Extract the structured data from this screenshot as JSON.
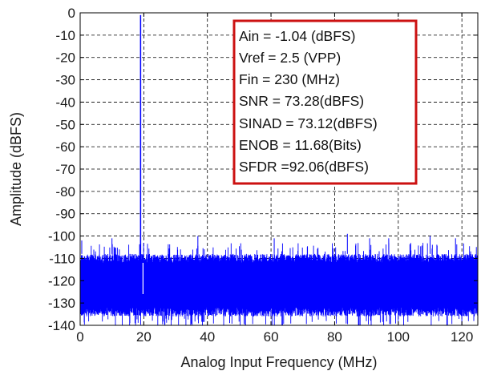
{
  "chart_data": {
    "type": "line",
    "xlabel": "Analog Input Frequency (MHz)",
    "ylabel": "Amplitude (dBFS)",
    "xlim": [
      0,
      125
    ],
    "ylim": [
      -140,
      0
    ],
    "x_ticks": [
      0,
      20,
      40,
      60,
      80,
      100,
      120
    ],
    "x_tick_labels": [
      "0",
      "20",
      "40",
      "60",
      "80",
      "100",
      "120"
    ],
    "y_ticks": [
      0,
      -10,
      -20,
      -30,
      -40,
      -50,
      -60,
      -70,
      -80,
      -90,
      -100,
      -110,
      -120,
      -130,
      -140
    ],
    "y_tick_labels": [
      "0",
      "-10",
      "-20",
      "-30",
      "-40",
      "-50",
      "-60",
      "-70",
      "-80",
      "-90",
      "-100",
      "-110",
      "-120",
      "-130",
      "-140"
    ],
    "grid": true,
    "grid_style": "dashed",
    "series": [
      {
        "color": "#0000ff",
        "description_points": [
          {
            "x": 19.0,
            "y": -1.04
          },
          {
            "x": 19.0,
            "y": -100
          },
          {
            "x": 0.5,
            "y": -102
          },
          {
            "x": 10.0,
            "y": -101
          },
          {
            "x": 37.0,
            "y": -100
          },
          {
            "x": 61.0,
            "y": -101
          },
          {
            "x": 84.0,
            "y": -99
          },
          {
            "x": 91.0,
            "y": -101
          },
          {
            "x": 97.0,
            "y": -101
          },
          {
            "x": 110.0,
            "y": -100
          },
          {
            "x": 118.0,
            "y": -101
          },
          {
            "x": 27.0,
            "y": -137
          },
          {
            "x": 47.0,
            "y": -139
          },
          {
            "x": 88.0,
            "y": -140
          }
        ],
        "noise_floor_band": [
          -108,
          -132
        ],
        "fundamental": {
          "x": 19.0,
          "y": -1.04
        }
      }
    ],
    "annotation": {
      "border_color": "#cc1111",
      "lines": [
        "Ain = -1.04  (dBFS)",
        "Vref = 2.5 (VPP)",
        "Fin = 230 (MHz)",
        "SNR = 73.28(dBFS)",
        "SINAD = 73.12(dBFS)",
        "ENOB = 11.68(Bits)",
        "SFDR =92.06(dBFS)"
      ]
    }
  }
}
